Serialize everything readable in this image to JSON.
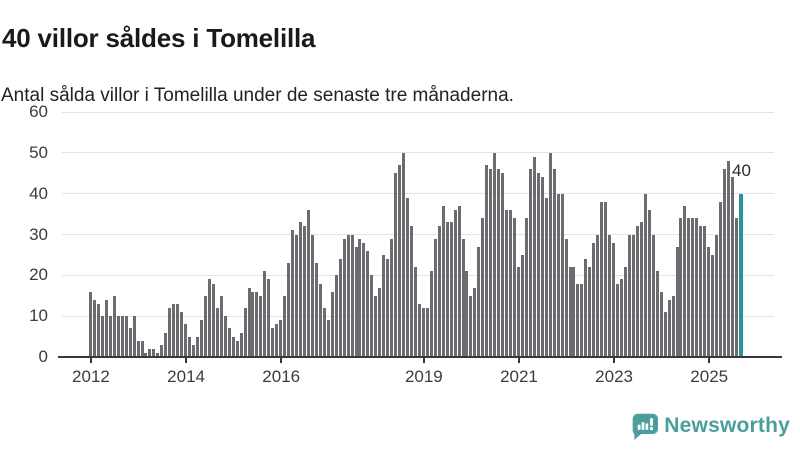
{
  "header": {
    "title": "40 villor såldes i Tomelilla",
    "subtitle": "Antal sålda villor i Tomelilla under de senaste tre månaderna."
  },
  "chart_data": {
    "type": "bar",
    "title": "40 villor såldes i Tomelilla",
    "subtitle": "Antal sålda villor i Tomelilla under de senaste tre månaderna.",
    "ylabel": "",
    "xlabel": "",
    "ylim": [
      0,
      60
    ],
    "y_ticks": [
      0,
      10,
      20,
      30,
      40,
      50,
      60
    ],
    "grid": "horizontal",
    "x_start_month": "2012-01",
    "x_end_month": "2025-09",
    "x_tick_labels": [
      "2012",
      "2014",
      "2016",
      "2019",
      "2021",
      "2023",
      "2025"
    ],
    "x_tick_month_index": [
      0,
      24,
      48,
      84,
      108,
      132,
      156
    ],
    "bar_color": "#6b6b70",
    "highlight_color": "#2a9494",
    "highlight_last_bar": true,
    "highlight_annotation": "40",
    "values": [
      16,
      14,
      13,
      10,
      14,
      10,
      15,
      10,
      10,
      10,
      7,
      10,
      4,
      4,
      1,
      2,
      2,
      1,
      3,
      6,
      12,
      13,
      13,
      11,
      8,
      5,
      3,
      5,
      9,
      15,
      19,
      18,
      12,
      15,
      10,
      7,
      5,
      4,
      6,
      12,
      17,
      16,
      16,
      15,
      21,
      19,
      7,
      8,
      9,
      15,
      23,
      31,
      30,
      33,
      32,
      36,
      30,
      23,
      18,
      12,
      9,
      16,
      20,
      24,
      29,
      30,
      30,
      27,
      29,
      28,
      26,
      20,
      15,
      17,
      25,
      24,
      29,
      45,
      47,
      50,
      39,
      32,
      22,
      13,
      12,
      12,
      21,
      29,
      32,
      37,
      33,
      33,
      36,
      37,
      29,
      21,
      15,
      17,
      27,
      34,
      47,
      46,
      50,
      46,
      45,
      36,
      36,
      34,
      22,
      25,
      34,
      46,
      49,
      45,
      44,
      39,
      50,
      46,
      40,
      40,
      29,
      22,
      22,
      18,
      18,
      24,
      22,
      28,
      30,
      38,
      38,
      30,
      28,
      18,
      19,
      22,
      30,
      30,
      32,
      33,
      40,
      36,
      30,
      21,
      16,
      11,
      14,
      15,
      27,
      34,
      37,
      34,
      34,
      34,
      32,
      32,
      27,
      25,
      30,
      38,
      46,
      48,
      44,
      34,
      40
    ]
  },
  "footer": {
    "brand": "Newsworthy",
    "brand_color": "#4a9f9a",
    "logo_icon": "newsworthy-speech-bubble-bar-chart-icon"
  }
}
